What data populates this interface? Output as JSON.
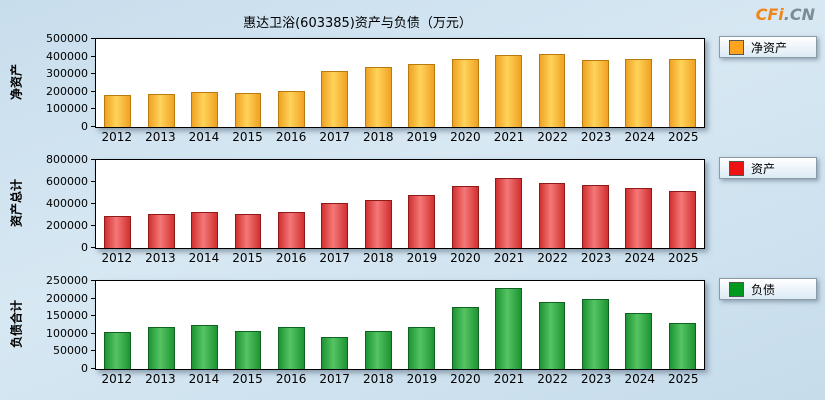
{
  "title": "惠达卫浴(603385)资产与负债（万元）",
  "logo": {
    "part1": "CFi",
    "part2": ".CN"
  },
  "chart_data": [
    {
      "type": "bar",
      "name": "net-assets",
      "ylabel": "净资产",
      "legend": "净资产",
      "categories": [
        "2012",
        "2013",
        "2014",
        "2015",
        "2016",
        "2017",
        "2018",
        "2019",
        "2020",
        "2021",
        "2022",
        "2023",
        "2024",
        "2025"
      ],
      "values": [
        180000,
        185000,
        198000,
        195000,
        205000,
        320000,
        340000,
        360000,
        385000,
        410000,
        415000,
        380000,
        385000,
        385000
      ],
      "ylim": [
        0,
        500000
      ],
      "yticks": [
        0,
        100000,
        200000,
        300000,
        400000,
        500000
      ],
      "grid": false,
      "legend_position": "right",
      "legend_color": "#FFA41E",
      "bar_colors": [
        "#F0A224",
        "#FFD35A",
        "#B97A0E"
      ]
    },
    {
      "type": "bar",
      "name": "total-assets",
      "ylabel": "资产总计",
      "legend": "资产",
      "categories": [
        "2012",
        "2013",
        "2014",
        "2015",
        "2016",
        "2017",
        "2018",
        "2019",
        "2020",
        "2021",
        "2022",
        "2023",
        "2024",
        "2025"
      ],
      "values": [
        295000,
        310000,
        330000,
        305000,
        330000,
        410000,
        440000,
        480000,
        560000,
        640000,
        590000,
        575000,
        550000,
        515000
      ],
      "ylim": [
        0,
        800000
      ],
      "yticks": [
        0,
        200000,
        400000,
        600000,
        800000
      ],
      "grid": false,
      "legend_position": "right",
      "legend_color": "#EE1111",
      "bar_colors": [
        "#D23030",
        "#F47878",
        "#8F1A1A"
      ]
    },
    {
      "type": "bar",
      "name": "total-liabilities",
      "ylabel": "负债合计",
      "legend": "负债",
      "categories": [
        "2012",
        "2013",
        "2014",
        "2015",
        "2016",
        "2017",
        "2018",
        "2019",
        "2020",
        "2021",
        "2022",
        "2023",
        "2024",
        "2025"
      ],
      "values": [
        105000,
        118000,
        125000,
        108000,
        120000,
        90000,
        108000,
        120000,
        175000,
        230000,
        190000,
        200000,
        160000,
        130000
      ],
      "ylim": [
        0,
        250000
      ],
      "yticks": [
        0,
        50000,
        100000,
        150000,
        200000,
        250000
      ],
      "grid": false,
      "legend_position": "right",
      "legend_color": "#00991F",
      "bar_colors": [
        "#1E9433",
        "#55C463",
        "#0F6320"
      ]
    }
  ]
}
